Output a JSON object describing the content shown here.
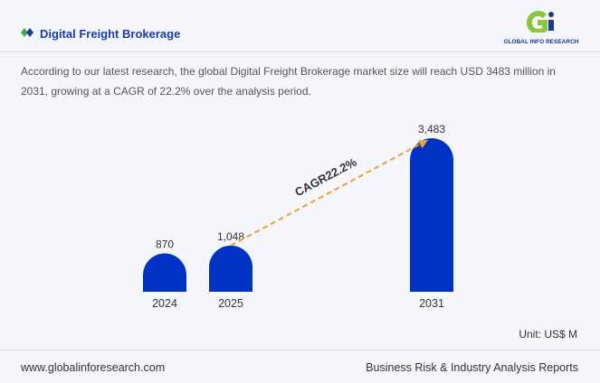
{
  "header": {
    "title": "Digital Freight Brokerage",
    "logo_text": "GLOBAL INFO RESEARCH"
  },
  "description": "According to our latest research, the global Digital Freight Brokerage market size will reach USD 3483 million in 2031, growing at a CAGR of 22.2% over the analysis period.",
  "unit": "Unit: US$ M",
  "footer": {
    "website": "www.globalinforesearch.com",
    "tagline": "Business Risk & Industry Analysis Reports"
  },
  "colors": {
    "bar": "#0033c4",
    "arrow": "#f0a030",
    "title": "#1b3aa8"
  },
  "chart_data": {
    "type": "bar",
    "categories": [
      "2024",
      "2025",
      "2031"
    ],
    "values": [
      870,
      1048,
      3483
    ],
    "value_labels": [
      "870",
      "1,048",
      "3,483"
    ],
    "annotation": "CAGR22.2%",
    "ylim": [
      0,
      3483
    ],
    "grid": false
  }
}
